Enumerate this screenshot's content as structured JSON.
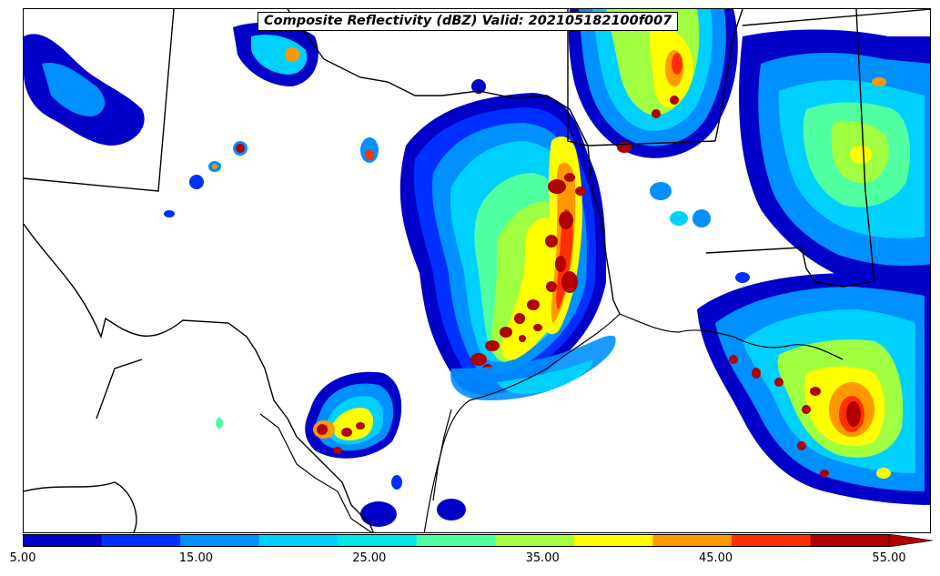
{
  "title": "Composite Reflectivity (dBZ) Valid: 202105182100f007",
  "colorbar": {
    "ticks": [
      "5.00",
      "15.00",
      "25.00",
      "35.00",
      "45.00",
      "55.00"
    ],
    "levels": [
      5,
      10,
      15,
      20,
      25,
      30,
      35,
      40,
      45,
      50,
      55
    ],
    "colors": [
      "#0000c8",
      "#0030ff",
      "#0090ff",
      "#00d0ff",
      "#00e8e8",
      "#50ffa0",
      "#a0ff40",
      "#ffff00",
      "#ff9800",
      "#ff3000",
      "#b00000"
    ],
    "extend": "max"
  }
}
